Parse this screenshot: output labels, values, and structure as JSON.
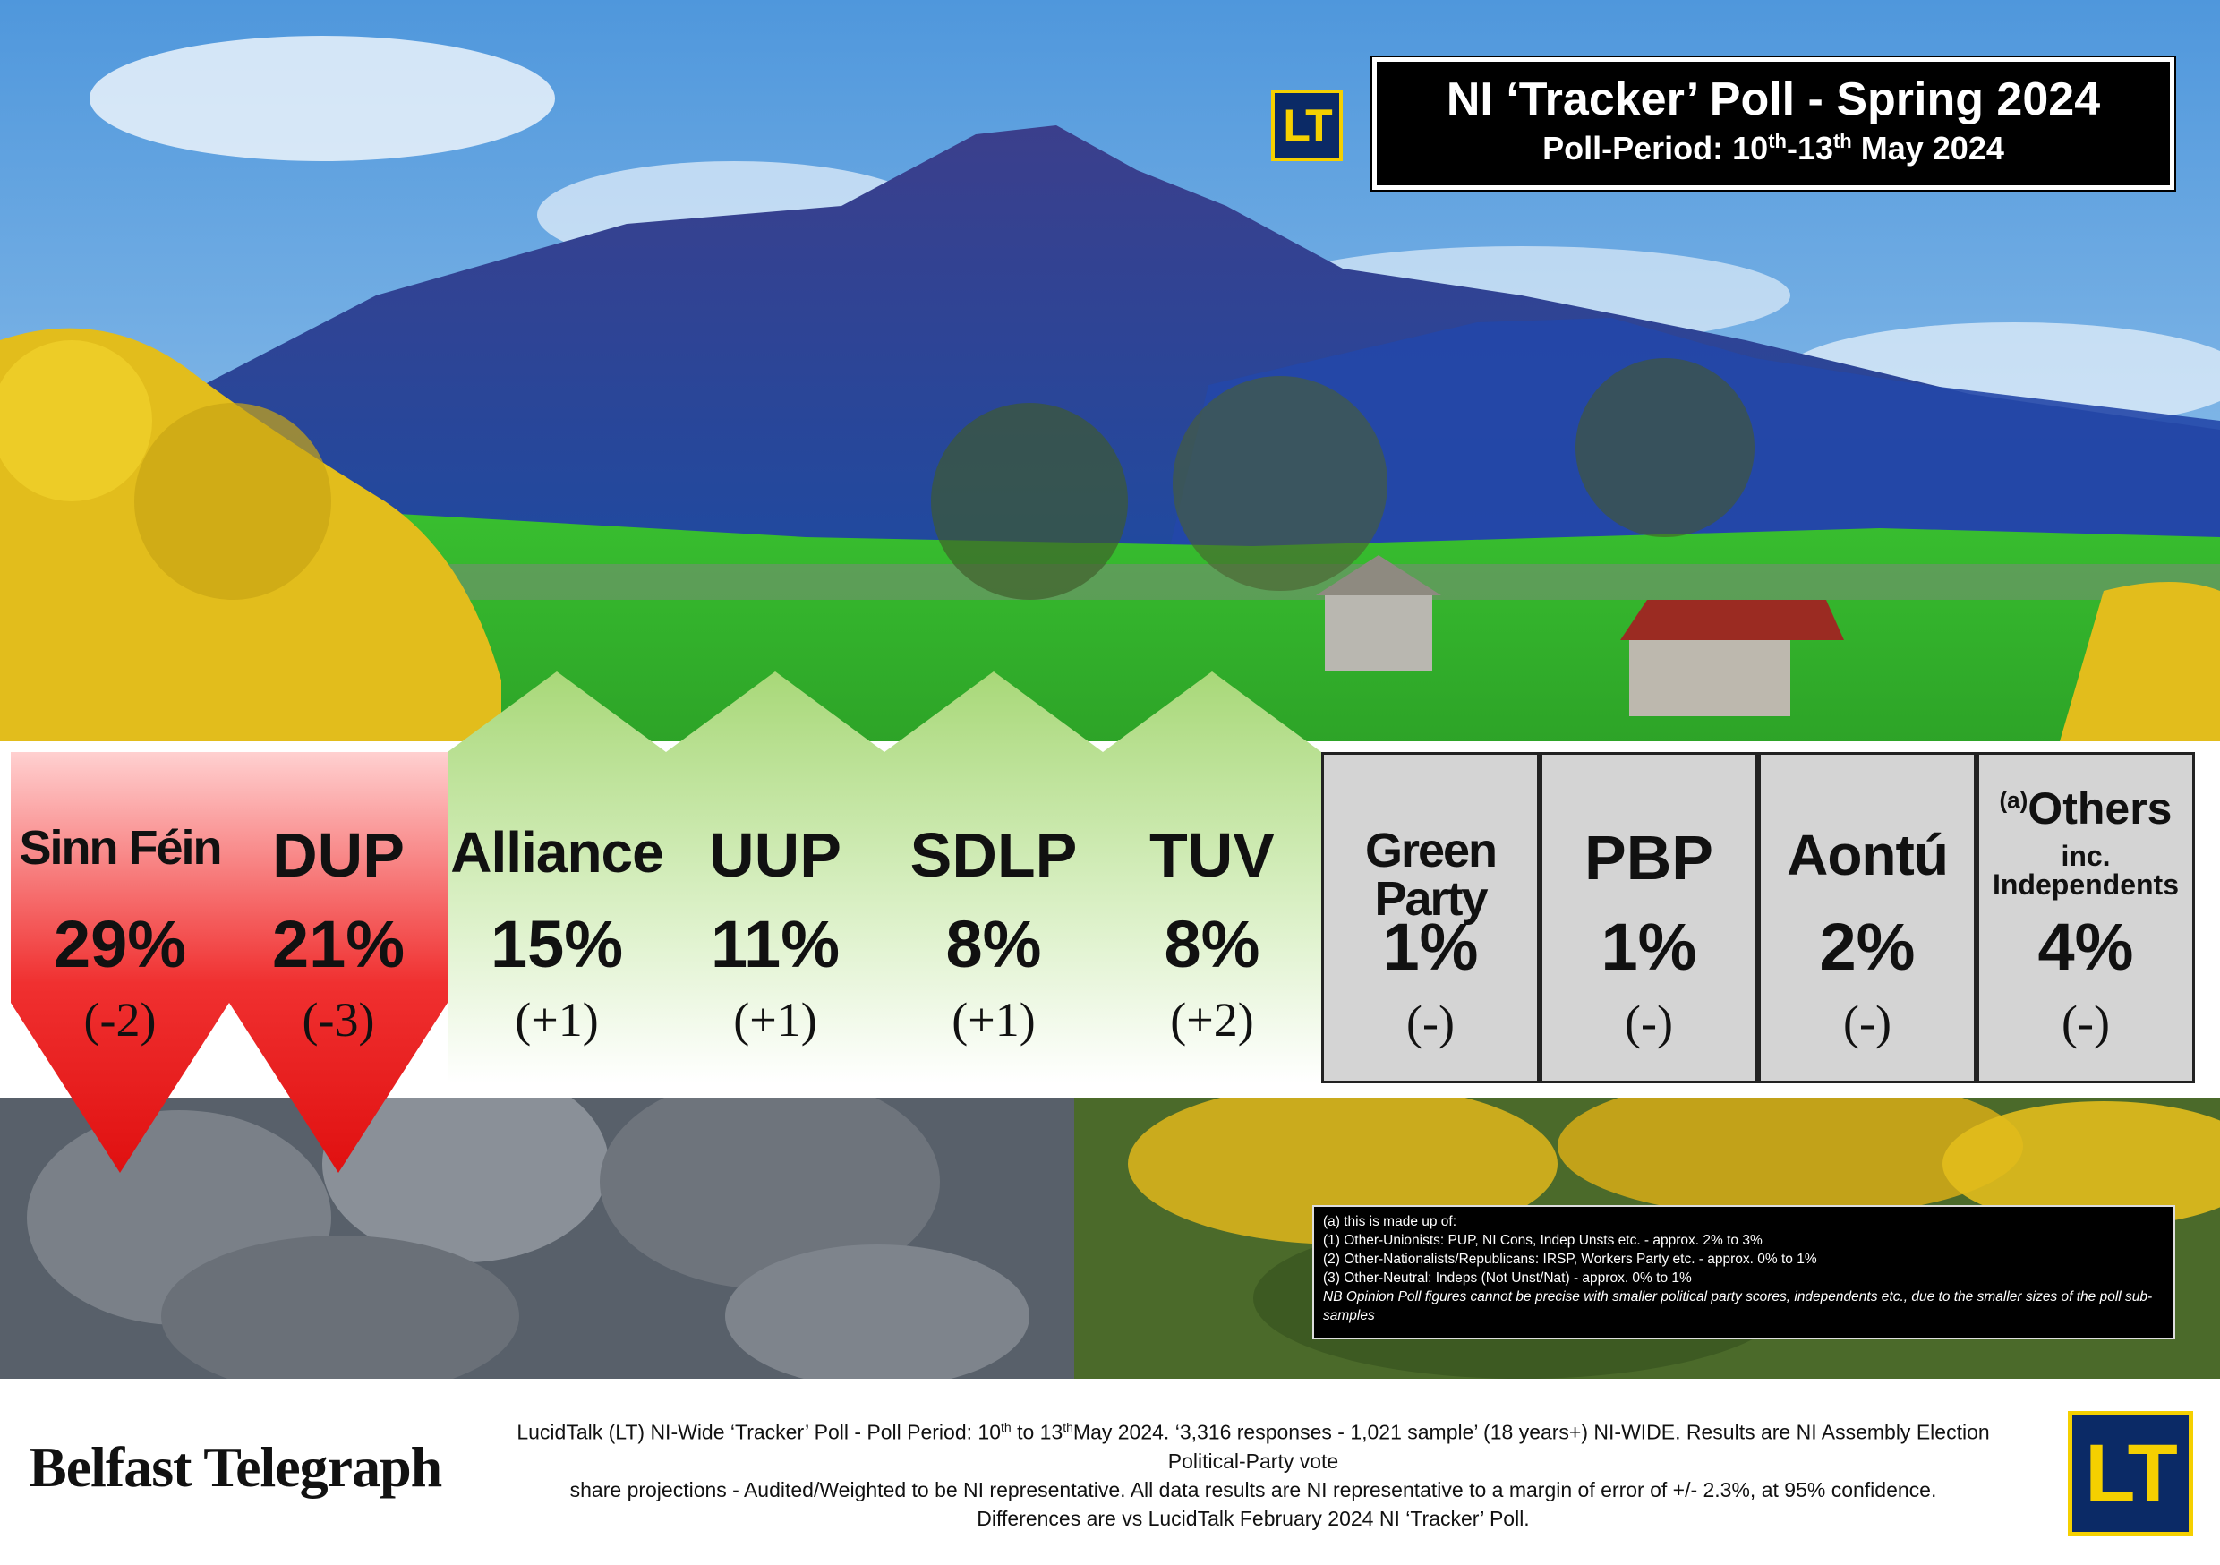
{
  "header": {
    "logo_text": "LT",
    "title": "NI ‘Tracker’ Poll - Spring 2024",
    "period_prefix": "Poll-Period: 10",
    "period_sup1": "th",
    "period_mid": "-13",
    "period_sup2": "th",
    "period_suffix": " May 2024"
  },
  "parties": [
    {
      "name": "Sinn Féin",
      "pct": "29%",
      "change": "(-2)",
      "trend": "down"
    },
    {
      "name": "DUP",
      "pct": "21%",
      "change": "(-3)",
      "trend": "down"
    },
    {
      "name": "Alliance",
      "pct": "15%",
      "change": "(+1)",
      "trend": "up"
    },
    {
      "name": "UUP",
      "pct": "11%",
      "change": "(+1)",
      "trend": "up"
    },
    {
      "name": "SDLP",
      "pct": "8%",
      "change": "(+1)",
      "trend": "up"
    },
    {
      "name": "TUV",
      "pct": "8%",
      "change": "(+2)",
      "trend": "up"
    },
    {
      "name": "Green Party",
      "pct": "1%",
      "change": "(-)",
      "trend": "flat"
    },
    {
      "name": "PBP",
      "pct": "1%",
      "change": "(-)",
      "trend": "flat"
    },
    {
      "name": "Aontú",
      "pct": "2%",
      "change": "(-)",
      "trend": "flat"
    },
    {
      "name": "Others",
      "name_prefix": "(a)",
      "name_line2": "inc. Independents",
      "pct": "4%",
      "change": "(-)",
      "trend": "flat"
    }
  ],
  "chart_data": {
    "type": "table",
    "title": "NI ‘Tracker’ Poll - Spring 2024",
    "categories": [
      "Sinn Féin",
      "DUP",
      "Alliance",
      "UUP",
      "SDLP",
      "TUV",
      "Green Party",
      "PBP",
      "Aontú",
      "Others inc. Independents"
    ],
    "values": [
      29,
      21,
      15,
      11,
      8,
      8,
      1,
      1,
      2,
      4
    ],
    "changes": [
      -2,
      -3,
      1,
      1,
      1,
      2,
      0,
      0,
      0,
      0
    ],
    "colors": {
      "down": "#e01010",
      "up": "#a8d878",
      "flat": "#d4d4d4"
    }
  },
  "footnote": {
    "l0": "(a) this is made up of:",
    "l1": "(1) Other-Unionists: PUP, NI Cons, Indep Unsts etc. - approx. 2% to 3%",
    "l2": "(2) Other-Nationalists/Republicans: IRSP, Workers Party etc. - approx. 0% to 1%",
    "l3": "(3) Other-Neutral: Indeps (Not Unst/Nat) - approx. 0% to 1%",
    "nb": "NB Opinion Poll figures cannot be precise with smaller political party scores, independents etc., due to the smaller sizes of the poll sub-samples"
  },
  "footer": {
    "brand": "Belfast Telegraph",
    "p1a": "LucidTalk (LT) NI-Wide ‘Tracker’ Poll - Poll Period: 10",
    "p1s1": "th",
    "p1b": " to 13",
    "p1s2": "th",
    "p1c": "May 2024.  ‘3,316 responses - 1,021 sample’ (18 years+) NI-WIDE. Results are NI Assembly Election Political-Party vote",
    "p2": "share projections - Audited/Weighted to be NI representative.  All data results are NI representative to a margin of error of +/- 2.3%, at 95% confidence.",
    "p3": "Differences are vs LucidTalk February 2024 NI ‘Tracker’ Poll.",
    "logo_text": "LT"
  },
  "colors": {
    "sky": "#7fb8e8",
    "mountain": "#2e3f9a",
    "field": "#35b52a",
    "gorse": "#e8c21a"
  }
}
